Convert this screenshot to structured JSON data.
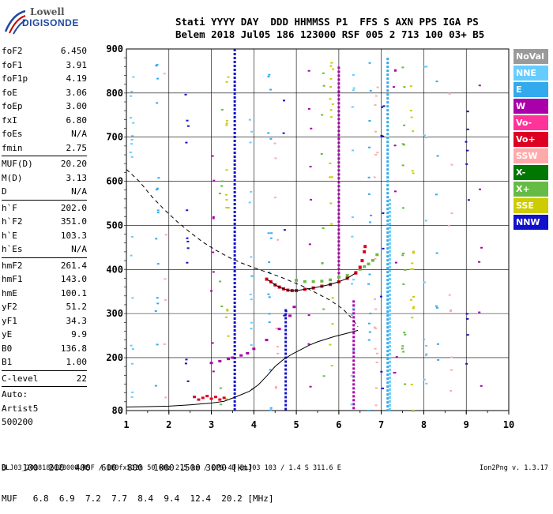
{
  "logo": {
    "brand_top": "Lowell",
    "brand_bottom": "DIGISONDE"
  },
  "header": {
    "line1": "Stati YYYY DAY  DDD HHMMSS P1  FFS S AXN PPS IGA PS",
    "line2": "Belem 2018 Jul05 186 123000 RSF 005 2 713 100 03+ B5"
  },
  "params": [
    {
      "key": "foF2",
      "val": "6.450"
    },
    {
      "key": "foF1",
      "val": "3.91"
    },
    {
      "key": "foF1p",
      "val": "4.19"
    },
    {
      "key": "foE",
      "val": "3.06"
    },
    {
      "key": "foEp",
      "val": "3.00"
    },
    {
      "key": "fxI",
      "val": "6.80"
    },
    {
      "key": "foEs",
      "val": "N/A"
    },
    {
      "key": "fmin",
      "val": "2.75"
    },
    {
      "sep": true
    },
    {
      "key": "MUF(D)",
      "val": "20.20"
    },
    {
      "key": "M(D)",
      "val": "3.13"
    },
    {
      "key": "D",
      "val": "N/A"
    },
    {
      "sep": true
    },
    {
      "key": "h`F",
      "val": "202.0"
    },
    {
      "key": "h`F2",
      "val": "351.0"
    },
    {
      "key": "h`E",
      "val": "103.3"
    },
    {
      "key": "h`Es",
      "val": "N/A"
    },
    {
      "sep": true
    },
    {
      "key": "hmF2",
      "val": "261.4"
    },
    {
      "key": "hmF1",
      "val": "143.0"
    },
    {
      "key": "hmE",
      "val": "100.1"
    },
    {
      "key": "yF2",
      "val": "51.2"
    },
    {
      "key": "yF1",
      "val": "34.3"
    },
    {
      "key": "yE",
      "val": "9.9"
    },
    {
      "key": "B0",
      "val": "136.8"
    },
    {
      "key": "B1",
      "val": "1.00"
    },
    {
      "sep": true
    },
    {
      "key": "C-level",
      "val": "22"
    },
    {
      "sep": true
    },
    {
      "text": "Auto:"
    },
    {
      "text": "Artist5"
    },
    {
      "text": "500200"
    }
  ],
  "legend": [
    {
      "label": "NoVal",
      "color": "#9a9a9a"
    },
    {
      "label": "NNE",
      "color": "#66ccff"
    },
    {
      "label": "E",
      "color": "#33aaee"
    },
    {
      "label": "W",
      "color": "#aa00aa"
    },
    {
      "label": "Vo-",
      "color": "#ff3399"
    },
    {
      "label": "Vo+",
      "color": "#dd0022"
    },
    {
      "label": "SSW",
      "color": "#ffaaaa"
    },
    {
      "label": "X-",
      "color": "#007700"
    },
    {
      "label": "X+",
      "color": "#66bb44"
    },
    {
      "label": "SSE",
      "color": "#cccc00"
    },
    {
      "label": "NNW",
      "color": "#1111cc"
    }
  ],
  "muf_table": {
    "d_label": "D",
    "muf_label": "MUF",
    "d_values": [
      "100",
      "200",
      "400",
      "600",
      "800",
      "1000",
      "1500",
      "3000"
    ],
    "d_unit": "[km]",
    "muf_values": [
      "6.8",
      "6.9",
      "7.2",
      "7.7",
      "8.4",
      "9.4",
      "12.4",
      "20.2"
    ],
    "muf_unit": "[MHz]"
  },
  "footer": "BLJ03_2018186123000.RSF / 180fx512h 50 kHz 2.5 km / DPS-4D BLJ03 103 / 1.4 S 311.6 E",
  "version": "Ion2Png v. 1.3.17",
  "chart_data": {
    "type": "scatter",
    "xlim": [
      1,
      10
    ],
    "ylim": [
      80,
      900
    ],
    "x_ticks": [
      "1",
      "2",
      "3",
      "4",
      "5",
      "6",
      "7",
      "8",
      "9",
      "10"
    ],
    "y_ticks": [
      "80",
      "200",
      "300",
      "400",
      "500",
      "600",
      "700",
      "800",
      "900"
    ],
    "traces": {
      "o_trace": [
        [
          3.0,
          188
        ],
        [
          3.2,
          192
        ],
        [
          3.4,
          197
        ],
        [
          3.5,
          200
        ],
        [
          3.7,
          205
        ],
        [
          3.85,
          210
        ],
        [
          4.0,
          220
        ],
        [
          4.3,
          240
        ],
        [
          4.6,
          265
        ],
        [
          4.85,
          295
        ],
        [
          4.95,
          315
        ]
      ],
      "f2_trace": [
        [
          4.3,
          378
        ],
        [
          4.4,
          372
        ],
        [
          4.5,
          365
        ],
        [
          4.6,
          360
        ],
        [
          4.7,
          356
        ],
        [
          4.8,
          353
        ],
        [
          4.9,
          352
        ],
        [
          5.0,
          352
        ],
        [
          5.2,
          355
        ],
        [
          5.4,
          358
        ],
        [
          5.6,
          362
        ],
        [
          5.8,
          366
        ],
        [
          6.0,
          372
        ],
        [
          6.2,
          380
        ],
        [
          6.4,
          392
        ],
        [
          6.5,
          405
        ],
        [
          6.55,
          420
        ],
        [
          6.6,
          440
        ],
        [
          6.62,
          452
        ]
      ],
      "x_trace": [
        [
          5.0,
          375
        ],
        [
          5.2,
          372
        ],
        [
          5.4,
          372
        ],
        [
          5.6,
          373
        ],
        [
          5.8,
          376
        ],
        [
          6.0,
          382
        ],
        [
          6.2,
          386
        ],
        [
          6.4,
          393
        ],
        [
          6.5,
          400
        ],
        [
          6.6,
          406
        ],
        [
          6.7,
          412
        ],
        [
          6.8,
          420
        ],
        [
          6.9,
          433
        ]
      ],
      "profile_solid": [
        [
          1.0,
          88
        ],
        [
          1.5,
          89
        ],
        [
          2.0,
          90
        ],
        [
          2.5,
          93
        ],
        [
          3.0,
          97
        ],
        [
          3.3,
          101
        ],
        [
          3.6,
          112
        ],
        [
          3.9,
          124
        ],
        [
          4.1,
          138
        ],
        [
          4.3,
          158
        ],
        [
          4.5,
          180
        ],
        [
          4.7,
          196
        ],
        [
          4.9,
          208
        ],
        [
          5.1,
          218
        ],
        [
          5.3,
          228
        ],
        [
          5.5,
          236
        ],
        [
          5.7,
          242
        ],
        [
          5.9,
          248
        ],
        [
          6.1,
          253
        ],
        [
          6.3,
          258
        ],
        [
          6.45,
          262
        ]
      ],
      "profile_dashed": [
        [
          1.0,
          627
        ],
        [
          1.3,
          600
        ],
        [
          1.6,
          565
        ],
        [
          1.9,
          535
        ],
        [
          2.2,
          508
        ],
        [
          2.5,
          484
        ],
        [
          2.8,
          462
        ],
        [
          3.1,
          444
        ],
        [
          3.4,
          428
        ],
        [
          3.7,
          415
        ],
        [
          4.0,
          404
        ],
        [
          4.3,
          394
        ],
        [
          4.6,
          384
        ],
        [
          4.9,
          372
        ],
        [
          5.2,
          360
        ],
        [
          5.5,
          345
        ],
        [
          5.8,
          330
        ],
        [
          6.1,
          310
        ],
        [
          6.3,
          290
        ],
        [
          6.45,
          270
        ]
      ],
      "es_cluster": [
        [
          2.8,
          108
        ],
        [
          2.9,
          112
        ],
        [
          3.0,
          106
        ],
        [
          3.1,
          110
        ],
        [
          3.2,
          104
        ],
        [
          3.3,
          108
        ],
        [
          2.6,
          110
        ],
        [
          2.7,
          104
        ]
      ]
    },
    "vertical_streaks": [
      {
        "x": 3.55,
        "y0": 80,
        "y1": 900,
        "dir": "NNW"
      },
      {
        "x": 4.75,
        "y0": 80,
        "y1": 310,
        "dir": "NNW"
      },
      {
        "x": 6.0,
        "y0": 380,
        "y1": 860,
        "dir": "W"
      },
      {
        "x": 7.15,
        "y0": 80,
        "y1": 880,
        "dir": "E"
      },
      {
        "x": 7.2,
        "y0": 80,
        "y1": 560,
        "dir": "NNE"
      },
      {
        "x": 6.35,
        "y0": 80,
        "y1": 330,
        "dir": "W"
      }
    ]
  }
}
